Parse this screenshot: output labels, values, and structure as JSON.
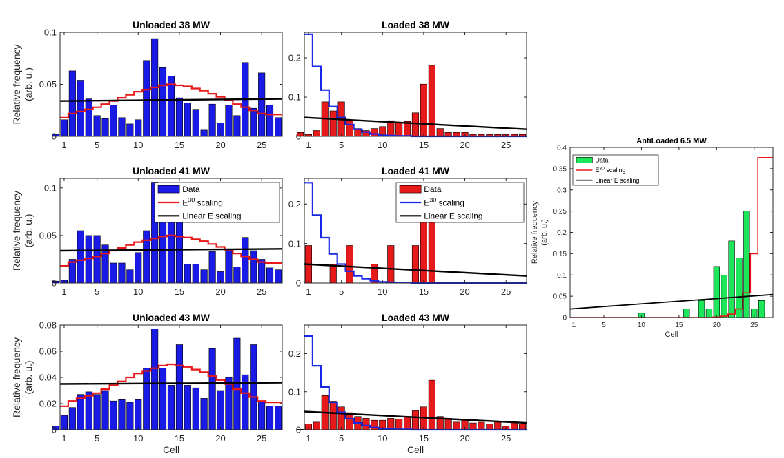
{
  "figure": {
    "colors": {
      "unloaded": "#1a1ae6",
      "loaded": "#e61a1a",
      "antiloaded": "#1ee65a",
      "e30": "#e81818",
      "e30_blue": "#1a28e6",
      "linear": "#000000",
      "edge": "#000000"
    }
  },
  "chart_data": [
    {
      "id": "p11",
      "type": "bar",
      "title": "Unloaded 38 MW",
      "ylabel": [
        "Relative frequency",
        "(arb. u.)"
      ],
      "xlabel": "",
      "xlim": [
        0.5,
        27.5
      ],
      "ylim": [
        0,
        0.1
      ],
      "xticks": [
        1,
        5,
        10,
        15,
        20,
        25
      ],
      "yticks": [
        0,
        0.05,
        0.1
      ],
      "ytick_labels": [
        "0",
        "0.05",
        "0.1"
      ],
      "bar_color": "unloaded",
      "e30_color": "e30",
      "values": [
        0.002,
        0.016,
        0.063,
        0.054,
        0.036,
        0.02,
        0.017,
        0.03,
        0.018,
        0.012,
        0.016,
        0.073,
        0.094,
        0.066,
        0.058,
        0.037,
        0.032,
        0.026,
        0.006,
        0.031,
        0.013,
        0.03,
        0.02,
        0.071,
        0.027,
        0.061,
        0.03,
        0.018
      ],
      "e30": [
        0.018,
        0.018,
        0.022,
        0.024,
        0.026,
        0.028,
        0.031,
        0.034,
        0.037,
        0.04,
        0.043,
        0.045,
        0.047,
        0.049,
        0.05,
        0.049,
        0.048,
        0.046,
        0.044,
        0.041,
        0.038,
        0.035,
        0.031,
        0.028,
        0.025,
        0.022,
        0.021,
        0.021
      ],
      "linear": [
        0.034,
        0.036
      ],
      "legend": null
    },
    {
      "id": "p12",
      "type": "bar",
      "title": "Loaded 38 MW",
      "ylabel": [],
      "xlabel": "",
      "xlim": [
        0.5,
        27.5
      ],
      "ylim": [
        0,
        0.265
      ],
      "xticks": [
        1,
        5,
        10,
        15,
        20,
        25
      ],
      "yticks": [
        0,
        0.1,
        0.2
      ],
      "ytick_labels": [
        "0",
        "0.1",
        "0.2"
      ],
      "bar_color": "loaded",
      "e30_color": "e30_blue",
      "values": [
        0.01,
        0.005,
        0.015,
        0.088,
        0.065,
        0.088,
        0.04,
        0.02,
        0.015,
        0.02,
        0.025,
        0.04,
        0.035,
        0.038,
        0.06,
        0.133,
        0.181,
        0.02,
        0.01,
        0.01,
        0.01,
        0.005,
        0.005,
        0.005,
        0.005,
        0.005,
        0.005,
        0.005
      ],
      "e30": [
        0.26,
        0.26,
        0.178,
        0.118,
        0.076,
        0.048,
        0.03,
        0.018,
        0.011,
        0.006,
        0.003,
        0.002,
        0.001,
        0.001,
        0,
        0,
        0,
        0,
        0,
        0,
        0,
        0,
        0,
        0,
        0,
        0,
        0,
        0
      ],
      "linear": [
        0.048,
        0.018
      ],
      "legend": null
    },
    {
      "id": "p21",
      "type": "bar",
      "title": "Unloaded 41 MW",
      "ylabel": [
        "Relative frequency",
        "(arb. u.)"
      ],
      "xlabel": "",
      "xlim": [
        0.5,
        27.5
      ],
      "ylim": [
        0,
        0.11
      ],
      "xticks": [
        1,
        5,
        10,
        15,
        20,
        25
      ],
      "yticks": [
        0,
        0.05,
        0.1
      ],
      "ytick_labels": [
        "0",
        "0.05",
        "0.1"
      ],
      "bar_color": "unloaded",
      "e30_color": "e30",
      "values": [
        0.002,
        0.003,
        0.025,
        0.055,
        0.05,
        0.05,
        0.04,
        0.021,
        0.021,
        0.014,
        0.032,
        0.055,
        0.106,
        0.09,
        0.066,
        0.071,
        0.02,
        0.02,
        0.014,
        0.033,
        0.012,
        0.035,
        0.017,
        0.048,
        0.034,
        0.025,
        0.016,
        0.014
      ],
      "e30": [
        0.018,
        0.018,
        0.022,
        0.024,
        0.026,
        0.028,
        0.031,
        0.034,
        0.037,
        0.04,
        0.043,
        0.045,
        0.047,
        0.049,
        0.05,
        0.049,
        0.048,
        0.046,
        0.044,
        0.041,
        0.038,
        0.035,
        0.031,
        0.028,
        0.025,
        0.022,
        0.021,
        0.021
      ],
      "linear": [
        0.034,
        0.036
      ],
      "legend": {
        "items": [
          {
            "label": "Data",
            "kind": "patch"
          },
          {
            "label": "E",
            "sup": "30",
            "tail": " scaling",
            "kind": "line",
            "color": "e30"
          },
          {
            "label": "Linear E scaling",
            "kind": "line",
            "color": "linear"
          }
        ]
      }
    },
    {
      "id": "p22",
      "type": "bar",
      "title": "Loaded 41 MW",
      "ylabel": [],
      "xlabel": "",
      "xlim": [
        0.5,
        27.5
      ],
      "ylim": [
        0,
        0.265
      ],
      "xticks": [
        1,
        5,
        10,
        15,
        20,
        25
      ],
      "yticks": [
        0,
        0.1,
        0.2
      ],
      "ytick_labels": [
        "0",
        "0.1",
        "0.2"
      ],
      "bar_color": "loaded",
      "e30_color": "e30_blue",
      "values": [
        0,
        0.095,
        0,
        0,
        0.048,
        0,
        0.095,
        0,
        0,
        0.048,
        0,
        0.095,
        0,
        0,
        0.095,
        0.19,
        0.238,
        0,
        0,
        0,
        0,
        0,
        0,
        0,
        0,
        0,
        0,
        0
      ],
      "e30": [
        0.254,
        0.254,
        0.172,
        0.115,
        0.074,
        0.048,
        0.03,
        0.018,
        0.011,
        0.006,
        0.003,
        0.002,
        0.001,
        0.001,
        0,
        0,
        0,
        0,
        0,
        0,
        0,
        0,
        0,
        0,
        0,
        0,
        0,
        0
      ],
      "linear": [
        0.048,
        0.018
      ],
      "legend": {
        "items": [
          {
            "label": "Data",
            "kind": "patch"
          },
          {
            "label": "E",
            "sup": "30",
            "tail": " scaling",
            "kind": "line",
            "color": "e30_blue"
          },
          {
            "label": "Linear E scaling",
            "kind": "line",
            "color": "linear"
          }
        ]
      }
    },
    {
      "id": "p31",
      "type": "bar",
      "title": "Unloaded 43 MW",
      "ylabel": [
        "Relative frequency",
        "(arb. u.)"
      ],
      "xlabel": "Cell",
      "xlim": [
        0.5,
        27.5
      ],
      "ylim": [
        0,
        0.08
      ],
      "xticks": [
        1,
        5,
        10,
        15,
        20,
        25
      ],
      "yticks": [
        0,
        0.02,
        0.04,
        0.06,
        0.08
      ],
      "ytick_labels": [
        "0",
        "0.02",
        "0.04",
        "0.06",
        "0.08"
      ],
      "bar_color": "unloaded",
      "e30_color": "e30",
      "values": [
        0.003,
        0.011,
        0.017,
        0.027,
        0.029,
        0.027,
        0.03,
        0.022,
        0.023,
        0.021,
        0.023,
        0.047,
        0.077,
        0.047,
        0.034,
        0.065,
        0.034,
        0.032,
        0.024,
        0.062,
        0.03,
        0.04,
        0.07,
        0.042,
        0.065,
        0.022,
        0.018,
        0.018
      ],
      "e30": [
        0.018,
        0.018,
        0.022,
        0.024,
        0.026,
        0.028,
        0.031,
        0.034,
        0.037,
        0.04,
        0.043,
        0.045,
        0.047,
        0.049,
        0.05,
        0.049,
        0.048,
        0.046,
        0.044,
        0.041,
        0.038,
        0.035,
        0.031,
        0.028,
        0.025,
        0.022,
        0.021,
        0.021
      ],
      "linear": [
        0.035,
        0.036
      ],
      "legend": null
    },
    {
      "id": "p32",
      "type": "bar",
      "title": "Loaded 43 MW",
      "ylabel": [],
      "xlabel": "Cell",
      "xlim": [
        0.5,
        27.5
      ],
      "ylim": [
        0,
        0.275
      ],
      "xticks": [
        1,
        5,
        10,
        15,
        20,
        25
      ],
      "yticks": [
        0,
        0.1,
        0.2
      ],
      "ytick_labels": [
        "0",
        "0.1",
        "0.2"
      ],
      "bar_color": "loaded",
      "e30_color": "e30_blue",
      "values": [
        0.001,
        0.015,
        0.02,
        0.09,
        0.075,
        0.06,
        0.045,
        0.035,
        0.03,
        0.025,
        0.025,
        0.03,
        0.028,
        0.035,
        0.05,
        0.06,
        0.13,
        0.035,
        0.03,
        0.02,
        0.025,
        0.018,
        0.02,
        0.015,
        0.02,
        0.01,
        0.02,
        0.015
      ],
      "e30": [
        0.246,
        0.246,
        0.168,
        0.112,
        0.072,
        0.046,
        0.029,
        0.018,
        0.011,
        0.006,
        0.003,
        0.002,
        0.001,
        0.001,
        0,
        0,
        0,
        0,
        0,
        0,
        0,
        0,
        0,
        0,
        0,
        0,
        0,
        0
      ],
      "linear": [
        0.048,
        0.018
      ],
      "legend": null
    },
    {
      "id": "p4",
      "type": "bar",
      "title": "AntiLoaded 6.5 MW",
      "ylabel": [
        "Relative frequency",
        "(arb. u.)"
      ],
      "xlabel": "Cell",
      "xlim": [
        0.5,
        27.5
      ],
      "ylim": [
        0,
        0.4
      ],
      "xticks": [
        1,
        5,
        10,
        15,
        20,
        25
      ],
      "yticks": [
        0,
        0.05,
        0.1,
        0.15,
        0.2,
        0.25,
        0.3,
        0.35,
        0.4
      ],
      "ytick_labels": [
        "0",
        "0.05",
        "0.1",
        "0.15",
        "0.2",
        "0.25",
        "0.3",
        "0.35",
        "0.4"
      ],
      "bar_color": "antiloaded",
      "e30_color": "e30",
      "values": [
        0,
        0,
        0,
        0,
        0,
        0,
        0,
        0,
        0,
        0,
        0.01,
        0,
        0,
        0,
        0,
        0,
        0.02,
        0,
        0.04,
        0.02,
        0.12,
        0.1,
        0.18,
        0.14,
        0.25,
        0.02,
        0.04,
        0
      ],
      "e30": [
        0,
        0,
        0,
        0,
        0,
        0,
        0,
        0,
        0,
        0,
        0,
        0,
        0,
        0,
        0,
        0,
        0,
        0,
        0,
        0,
        0.001,
        0.003,
        0.008,
        0.02,
        0.058,
        0.15,
        0.376,
        0.376
      ],
      "linear": [
        0.02,
        0.054
      ],
      "legend": {
        "items": [
          {
            "label": "Data",
            "kind": "patch"
          },
          {
            "label": "E",
            "sup": "30",
            "tail": " scaling",
            "kind": "line",
            "color": "e30"
          },
          {
            "label": "Linear E scaling",
            "kind": "line",
            "color": "linear"
          }
        ]
      }
    }
  ]
}
